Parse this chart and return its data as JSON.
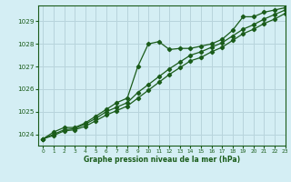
{
  "title": "Graphe pression niveau de la mer (hPa)",
  "background_color": "#d4eef4",
  "grid_color": "#b8d4dc",
  "line_color": "#1a5c1a",
  "xlim": [
    -0.5,
    23
  ],
  "ylim": [
    1023.5,
    1029.7
  ],
  "yticks": [
    1024,
    1025,
    1026,
    1027,
    1028,
    1029
  ],
  "xticks": [
    0,
    1,
    2,
    3,
    4,
    5,
    6,
    7,
    8,
    9,
    10,
    11,
    12,
    13,
    14,
    15,
    16,
    17,
    18,
    19,
    20,
    21,
    22,
    23
  ],
  "series1_x": [
    0,
    1,
    2,
    3,
    4,
    5,
    6,
    7,
    8,
    9,
    10,
    11,
    12,
    13,
    14,
    15,
    16,
    17,
    18,
    19,
    20,
    21,
    22,
    23
  ],
  "series1_y": [
    1023.8,
    1024.1,
    1024.3,
    1024.3,
    1024.5,
    1024.8,
    1025.1,
    1025.4,
    1025.6,
    1027.0,
    1028.0,
    1028.1,
    1027.75,
    1027.8,
    1027.8,
    1027.9,
    1028.0,
    1028.2,
    1028.6,
    1029.2,
    1029.2,
    1029.4,
    1029.5,
    1029.6
  ],
  "series2_x": [
    0,
    1,
    2,
    3,
    4,
    5,
    6,
    7,
    8,
    9,
    10,
    11,
    12,
    13,
    14,
    15,
    16,
    17,
    18,
    19,
    20,
    21,
    22,
    23
  ],
  "series2_y": [
    1023.8,
    1024.0,
    1024.2,
    1024.25,
    1024.45,
    1024.7,
    1025.0,
    1025.2,
    1025.4,
    1025.85,
    1026.2,
    1026.55,
    1026.9,
    1027.2,
    1027.5,
    1027.65,
    1027.85,
    1028.05,
    1028.35,
    1028.65,
    1028.85,
    1029.1,
    1029.3,
    1029.5
  ],
  "series3_x": [
    0,
    1,
    2,
    3,
    4,
    5,
    6,
    7,
    8,
    9,
    10,
    11,
    12,
    13,
    14,
    15,
    16,
    17,
    18,
    19,
    20,
    21,
    22,
    23
  ],
  "series3_y": [
    1023.8,
    1023.95,
    1024.15,
    1024.2,
    1024.35,
    1024.6,
    1024.85,
    1025.05,
    1025.25,
    1025.6,
    1025.95,
    1026.3,
    1026.65,
    1026.95,
    1027.25,
    1027.4,
    1027.65,
    1027.85,
    1028.15,
    1028.45,
    1028.65,
    1028.9,
    1029.1,
    1029.35
  ]
}
